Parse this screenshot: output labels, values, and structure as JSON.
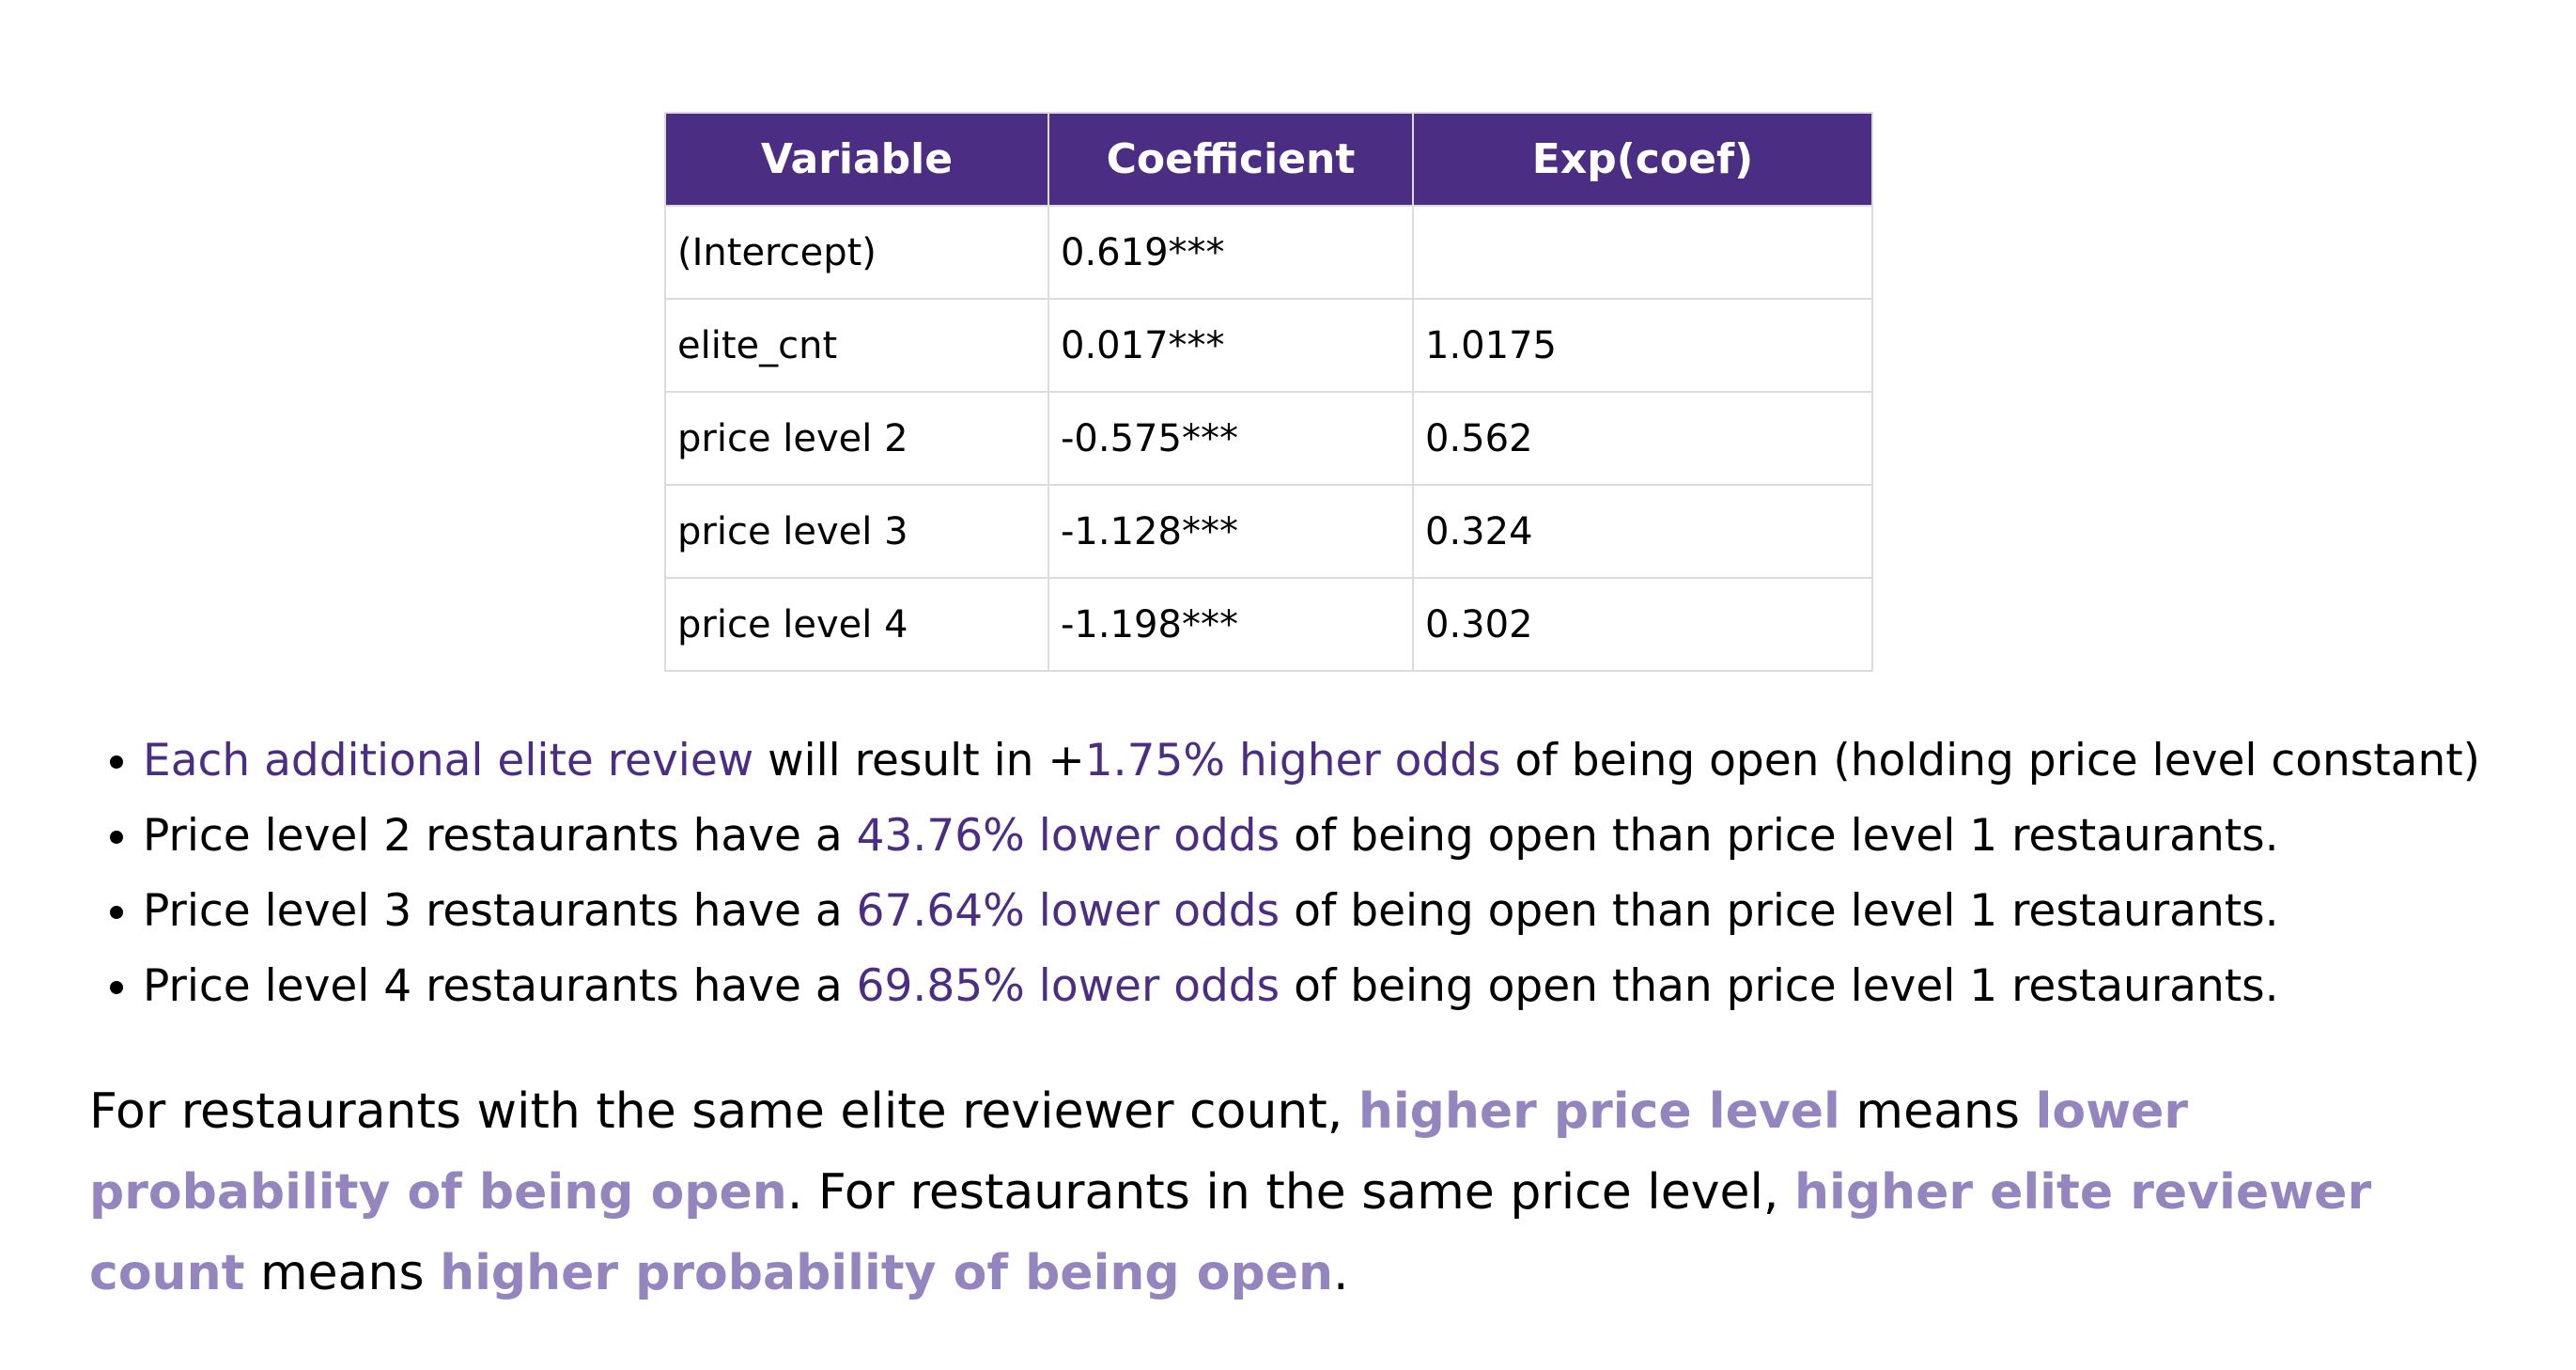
{
  "table": {
    "headers": [
      "Variable",
      "Coefficient",
      "Exp(coef)"
    ],
    "rows": [
      [
        "(Intercept)",
        "0.619***",
        ""
      ],
      [
        "elite_cnt",
        "0.017***",
        "1.0175"
      ],
      [
        "price level 2",
        "-0.575***",
        "0.562"
      ],
      [
        "price level 3",
        "-1.128***",
        "0.324"
      ],
      [
        "price level 4",
        "-1.198***",
        "0.302"
      ]
    ],
    "header_color": "#4b2e83"
  },
  "bullets": [
    {
      "hl1": "Each additional elite review",
      "t1": " will result in +",
      "hl2": "1.75% higher odds",
      "t2": " of being open (holding price level constant)"
    },
    {
      "t1": "Price level 2 restaurants have a ",
      "hl": "43.76% lower odds",
      "t2": " of being open than price level 1 restaurants."
    },
    {
      "t1": "Price level 3 restaurants have a ",
      "hl": "67.64% lower odds",
      "t2": " of being open than price level 1 restaurants."
    },
    {
      "t1": "Price level 4 restaurants have a ",
      "hl": "69.85% lower odds",
      "t2": " of being open than price level 1 restaurants."
    }
  ],
  "summary": {
    "p1": "For restaurants with the same elite reviewer count, ",
    "e1": "higher price level",
    "p2": " means ",
    "e2": "lower probability of being open",
    "p3": ". For restaurants in the same price level, ",
    "e3": "higher elite reviewer count",
    "p4": " means ",
    "e4": "higher probability of being open",
    "p5": "."
  },
  "colors": {
    "accent": "#4b2e83",
    "emphasis": "#9585bf"
  }
}
